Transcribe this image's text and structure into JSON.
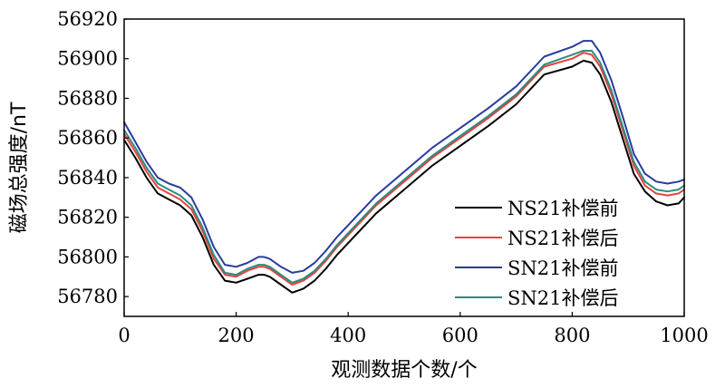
{
  "chart_data": {
    "type": "line",
    "title": "",
    "xlabel": "观测数据个数/个",
    "ylabel": "磁场总强度/nT",
    "xlim": [
      0,
      1000
    ],
    "ylim": [
      56770,
      56920
    ],
    "xticks": [
      0,
      200,
      400,
      600,
      800,
      1000
    ],
    "yticks": [
      56780,
      56800,
      56820,
      56840,
      56860,
      56880,
      56900,
      56920
    ],
    "grid": false,
    "legend_position": "bottom-right",
    "x": [
      0,
      20,
      40,
      60,
      80,
      100,
      120,
      140,
      160,
      180,
      200,
      220,
      240,
      250,
      260,
      280,
      300,
      320,
      340,
      360,
      380,
      400,
      450,
      500,
      550,
      600,
      650,
      700,
      750,
      800,
      820,
      835,
      850,
      870,
      890,
      910,
      930,
      950,
      970,
      990,
      1000
    ],
    "series": [
      {
        "name": "NS21补偿前",
        "color": "#000000",
        "values": [
          56859,
          56850,
          56840,
          56832,
          56829,
          56826,
          56821,
          56810,
          56796,
          56788,
          56787,
          56789,
          56791,
          56791,
          56790,
          56786,
          56782,
          56784,
          56788,
          56794,
          56801,
          56807,
          56822,
          56834,
          56846,
          56856,
          56866,
          56877,
          56892,
          56896,
          56899,
          56898,
          56892,
          56878,
          56860,
          56842,
          56833,
          56828,
          56826,
          56827,
          56830
        ]
      },
      {
        "name": "NS21补偿后",
        "color": "#e8413c",
        "values": [
          56862,
          56853,
          56843,
          56835,
          56832,
          56829,
          56824,
          56813,
          56799,
          56791,
          56790,
          56793,
          56795,
          56795,
          56794,
          56790,
          56786,
          56788,
          56792,
          56798,
          56805,
          56811,
          56826,
          56838,
          56850,
          56860,
          56870,
          56881,
          56896,
          56900,
          56903,
          56902,
          56896,
          56882,
          56864,
          56846,
          56836,
          56832,
          56831,
          56832,
          56834
        ]
      },
      {
        "name": "SN21补偿前",
        "color": "#2b3b9e",
        "values": [
          56868,
          56858,
          56848,
          56840,
          56837,
          56835,
          56830,
          56819,
          56805,
          56796,
          56795,
          56797,
          56800,
          56800,
          56799,
          56795,
          56792,
          56793,
          56797,
          56803,
          56810,
          56816,
          56831,
          56843,
          56855,
          56865,
          56875,
          56886,
          56901,
          56906,
          56909,
          56909,
          56903,
          56889,
          56871,
          56852,
          56842,
          56838,
          56837,
          56838,
          56839
        ]
      },
      {
        "name": "SN21补偿后",
        "color": "#2a8c80",
        "values": [
          56864,
          56855,
          56845,
          56837,
          56834,
          56831,
          56826,
          56815,
          56801,
          56792,
          56791,
          56794,
          56796,
          56796,
          56795,
          56791,
          56787,
          56789,
          56793,
          56799,
          56806,
          56812,
          56827,
          56839,
          56851,
          56861,
          56871,
          56882,
          56897,
          56902,
          56904,
          56904,
          56898,
          56884,
          56866,
          56848,
          56838,
          56834,
          56833,
          56834,
          56836
        ]
      }
    ]
  }
}
